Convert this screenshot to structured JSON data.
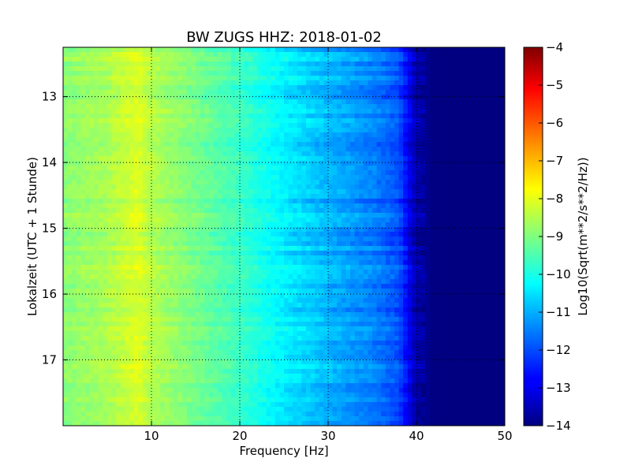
{
  "chart_data": {
    "type": "heatmap",
    "title": "BW ZUGS HHZ: 2018-01-02",
    "xlabel": "Frequency [Hz]",
    "ylabel": "Lokalzeit (UTC + 1 Stunde)",
    "xlim": [
      0,
      50
    ],
    "ylim": [
      12.25,
      18.0
    ],
    "y_inverted": true,
    "xticks": [
      10,
      20,
      30,
      40,
      50
    ],
    "yticks": [
      13,
      14,
      15,
      16,
      17
    ],
    "grid": true,
    "colormap": "jet",
    "colorbar": {
      "label": "Log10(Sqrt(m**2/s**2/Hz))",
      "range": [
        -14,
        -4
      ],
      "ticks": [
        -4,
        -5,
        -6,
        -7,
        -8,
        -9,
        -10,
        -11,
        -12,
        -13,
        -14
      ]
    },
    "spectrum_profile": {
      "frequency_hz": [
        0,
        5,
        8.5,
        10,
        15,
        20,
        25,
        30,
        35,
        38,
        40,
        42,
        50
      ],
      "log10_amplitude": [
        -8.9,
        -8.6,
        -8.1,
        -8.5,
        -9.1,
        -9.7,
        -10.4,
        -11.0,
        -11.5,
        -12.0,
        -13.6,
        -14.0,
        -14.0
      ]
    }
  }
}
